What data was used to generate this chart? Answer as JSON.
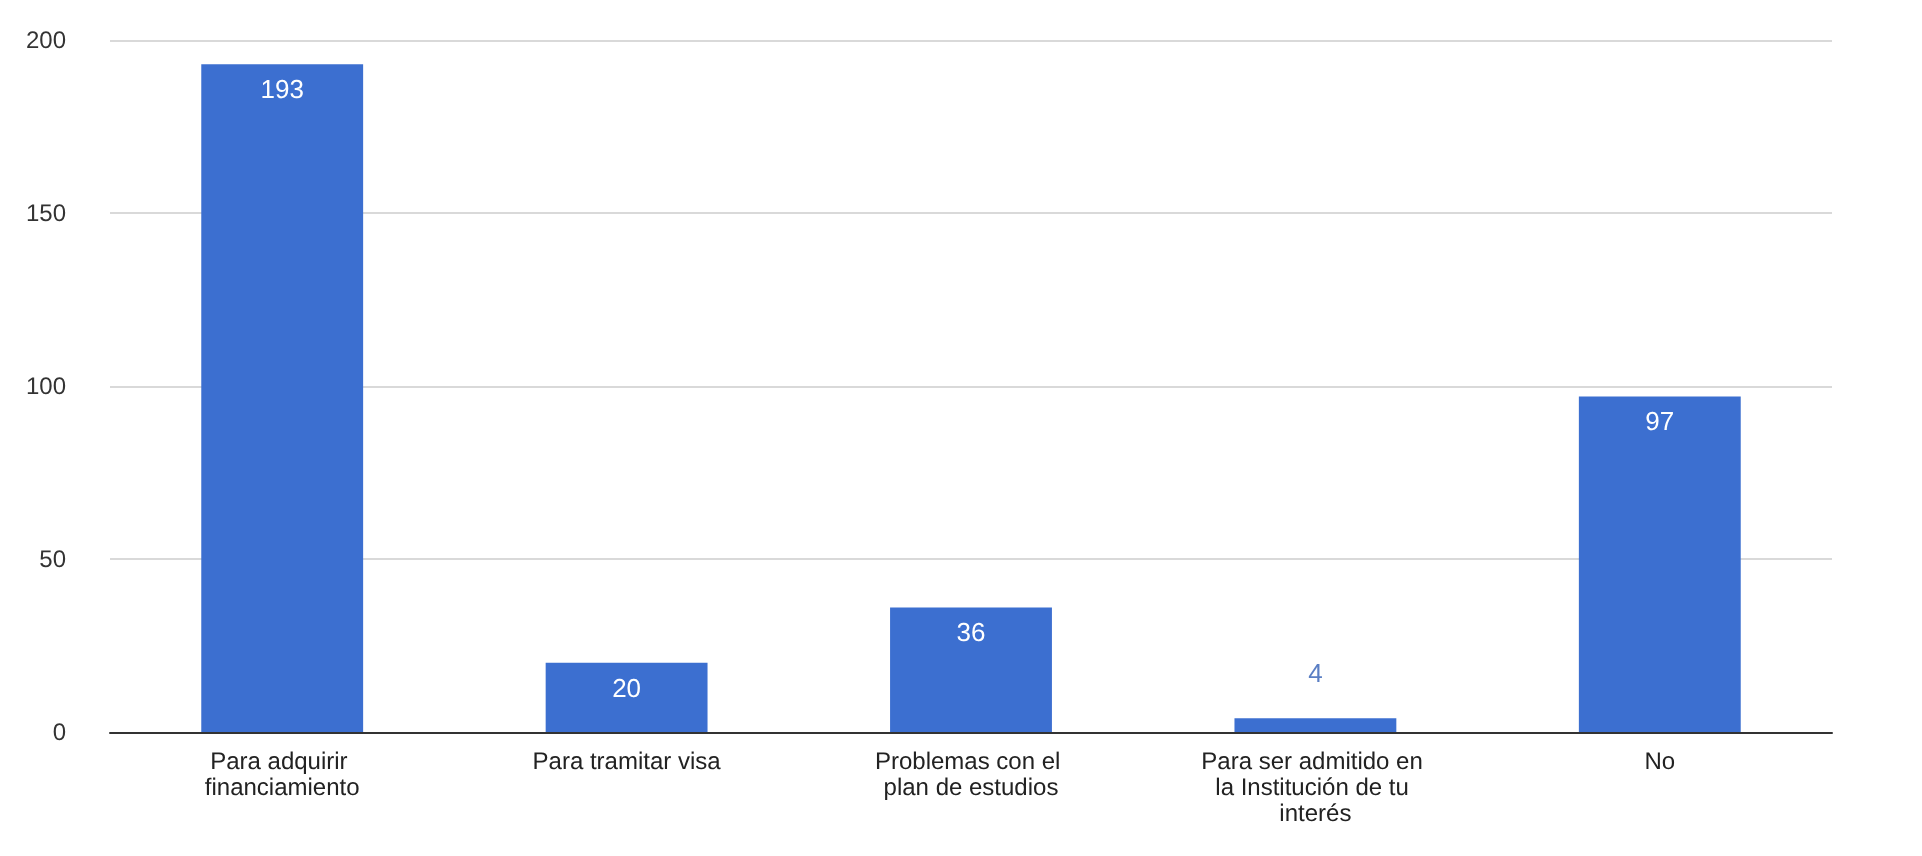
{
  "chart_data": {
    "type": "bar",
    "categories": [
      "Para adquirir financiamiento",
      "Para tramitar visa",
      "Problemas con el plan de estudios",
      "Para ser admitido en la Institución de tu interés",
      "No"
    ],
    "values": [
      193,
      20,
      36,
      4,
      97
    ],
    "color": "#3c6fd0",
    "ylim": [
      0,
      200
    ],
    "yticks": [
      0,
      50,
      100,
      150,
      200
    ],
    "grid": "y",
    "data_labels": true
  }
}
